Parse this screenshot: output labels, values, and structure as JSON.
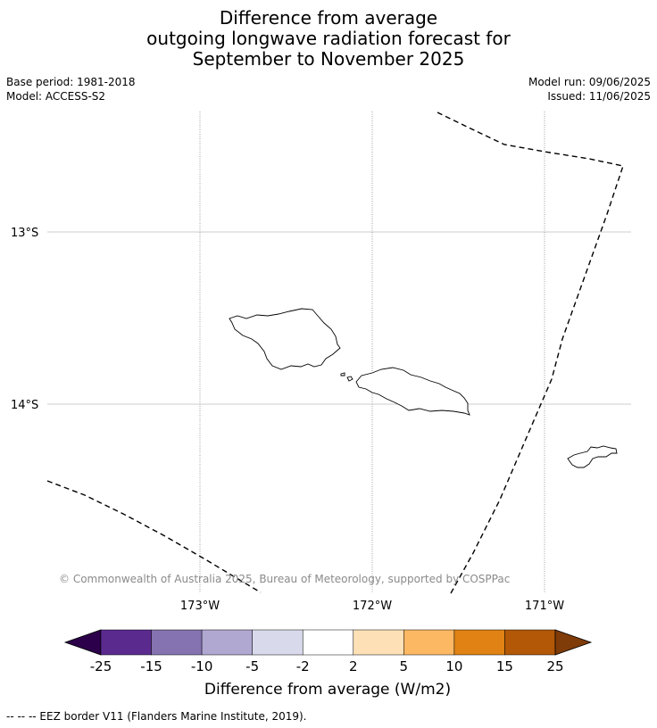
{
  "header": {
    "title_line1": "Difference from average",
    "title_line2": "outgoing longwave radiation forecast for",
    "title_line3": "September to November 2025",
    "base_period": "Base period: 1981-2018",
    "model": "Model: ACCESS-S2",
    "model_run": "Model run: 09/06/2025",
    "issued": "Issued: 11/06/2025"
  },
  "map": {
    "lat_labels": [
      "13°S",
      "14°S"
    ],
    "lon_labels": [
      "173°W",
      "172°W",
      "171°W"
    ],
    "copyright": "© Commonwealth of Australia 2025, Bureau of Meteorology, supported by COSPPac",
    "islands": [
      "Savai'i",
      "Upolu",
      "Tutuila"
    ]
  },
  "colorbar": {
    "title": "Difference from average (W/m2)",
    "ticks": [
      "-25",
      "-15",
      "-10",
      "-5",
      "-2",
      "2",
      "5",
      "10",
      "15",
      "25"
    ],
    "colors": [
      "#2d004b",
      "#5b2a8f",
      "#8473b0",
      "#b1a8d2",
      "#d8daeb",
      "#ffffff",
      "#fee0b6",
      "#fdb863",
      "#e08214",
      "#b35806",
      "#7f3b08"
    ]
  },
  "footnote": "--  --  -- EEZ border V11 (Flanders Marine Institute, 2019)."
}
